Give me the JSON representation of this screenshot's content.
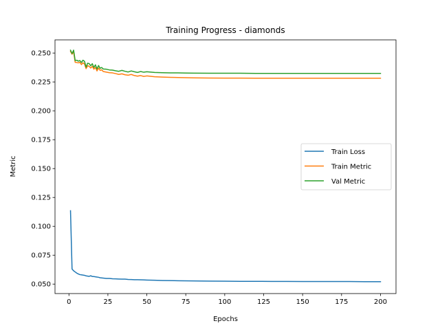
{
  "chart_data": {
    "type": "line",
    "title": "Training Progress - diamonds",
    "xlabel": "Epochs",
    "ylabel": "Metric",
    "xlim": [
      -8.95,
      209.95
    ],
    "ylim": [
      0.0418,
      0.2614
    ],
    "xticks": [
      0,
      25,
      50,
      75,
      100,
      125,
      150,
      175,
      200
    ],
    "yticks": [
      0.05,
      0.075,
      0.1,
      0.125,
      0.15,
      0.175,
      0.2,
      0.225,
      0.25
    ],
    "ytick_labels": [
      "0.050",
      "0.075",
      "0.100",
      "0.125",
      "0.150",
      "0.175",
      "0.200",
      "0.225",
      "0.250"
    ],
    "grid": false,
    "legend_position": "center-right",
    "series": [
      {
        "name": "Train Loss",
        "color": "#1f77b4",
        "x": [
          1,
          2,
          3,
          4,
          5,
          6,
          7,
          8,
          9,
          10,
          11,
          12,
          13,
          14,
          15,
          16,
          17,
          18,
          19,
          20,
          22,
          24,
          26,
          28,
          30,
          32,
          34,
          36,
          38,
          40,
          42,
          44,
          46,
          48,
          50,
          55,
          60,
          65,
          70,
          75,
          80,
          90,
          100,
          110,
          120,
          130,
          140,
          150,
          160,
          170,
          180,
          190,
          200
        ],
        "y": [
          0.1135,
          0.063,
          0.0615,
          0.0605,
          0.0595,
          0.0588,
          0.0582,
          0.058,
          0.0578,
          0.0576,
          0.0571,
          0.0569,
          0.0567,
          0.0572,
          0.0566,
          0.0565,
          0.0563,
          0.0561,
          0.0559,
          0.0555,
          0.0552,
          0.0549,
          0.0549,
          0.0546,
          0.0545,
          0.0544,
          0.0543,
          0.0543,
          0.054,
          0.0539,
          0.0538,
          0.0538,
          0.0537,
          0.0536,
          0.0535,
          0.0533,
          0.0531,
          0.053,
          0.0529,
          0.0528,
          0.0527,
          0.0526,
          0.0525,
          0.0524,
          0.0524,
          0.0523,
          0.0523,
          0.0522,
          0.0522,
          0.0522,
          0.0522,
          0.0521,
          0.0521
        ]
      },
      {
        "name": "Train Metric",
        "color": "#ff7f0e",
        "x": [
          1,
          2,
          3,
          4,
          5,
          6,
          7,
          8,
          9,
          10,
          11,
          12,
          13,
          14,
          15,
          16,
          17,
          18,
          19,
          20,
          21,
          22,
          24,
          26,
          28,
          30,
          32,
          34,
          36,
          38,
          40,
          42,
          44,
          46,
          48,
          50,
          55,
          60,
          65,
          70,
          75,
          80,
          90,
          100,
          110,
          120,
          130,
          140,
          150,
          160,
          170,
          180,
          190,
          200
        ],
        "y": [
          0.2515,
          0.249,
          0.251,
          0.242,
          0.2418,
          0.2415,
          0.242,
          0.24,
          0.2416,
          0.2405,
          0.2365,
          0.239,
          0.2385,
          0.237,
          0.2385,
          0.236,
          0.2375,
          0.2345,
          0.237,
          0.235,
          0.2355,
          0.234,
          0.2335,
          0.233,
          0.2328,
          0.2322,
          0.2315,
          0.232,
          0.2312,
          0.2308,
          0.2315,
          0.2305,
          0.23,
          0.2305,
          0.2298,
          0.2302,
          0.2295,
          0.2292,
          0.229,
          0.2288,
          0.2287,
          0.2285,
          0.2284,
          0.2283,
          0.2283,
          0.2282,
          0.2282,
          0.2282,
          0.2282,
          0.2282,
          0.2282,
          0.2282,
          0.2282,
          0.2282
        ]
      },
      {
        "name": "Val Metric",
        "color": "#2ca02c",
        "x": [
          1,
          2,
          3,
          4,
          5,
          6,
          7,
          8,
          9,
          10,
          11,
          12,
          13,
          14,
          15,
          16,
          17,
          18,
          19,
          20,
          21,
          22,
          24,
          26,
          28,
          30,
          32,
          34,
          36,
          38,
          40,
          42,
          44,
          46,
          48,
          50,
          55,
          60,
          65,
          70,
          75,
          80,
          90,
          100,
          110,
          120,
          130,
          140,
          150,
          160,
          170,
          180,
          190,
          200
        ],
        "y": [
          0.2525,
          0.2495,
          0.2525,
          0.2435,
          0.2438,
          0.243,
          0.2435,
          0.2418,
          0.2438,
          0.2428,
          0.2378,
          0.2412,
          0.2408,
          0.239,
          0.2408,
          0.2375,
          0.2398,
          0.2362,
          0.2392,
          0.2368,
          0.2375,
          0.2362,
          0.236,
          0.2354,
          0.2352,
          0.2346,
          0.2342,
          0.235,
          0.2342,
          0.2336,
          0.2345,
          0.2338,
          0.2332,
          0.234,
          0.2334,
          0.2338,
          0.2332,
          0.233,
          0.2328,
          0.2328,
          0.2327,
          0.2326,
          0.2325,
          0.2325,
          0.2325,
          0.2324,
          0.2324,
          0.2324,
          0.2324,
          0.2324,
          0.2324,
          0.2324,
          0.2324,
          0.2324
        ]
      }
    ]
  }
}
